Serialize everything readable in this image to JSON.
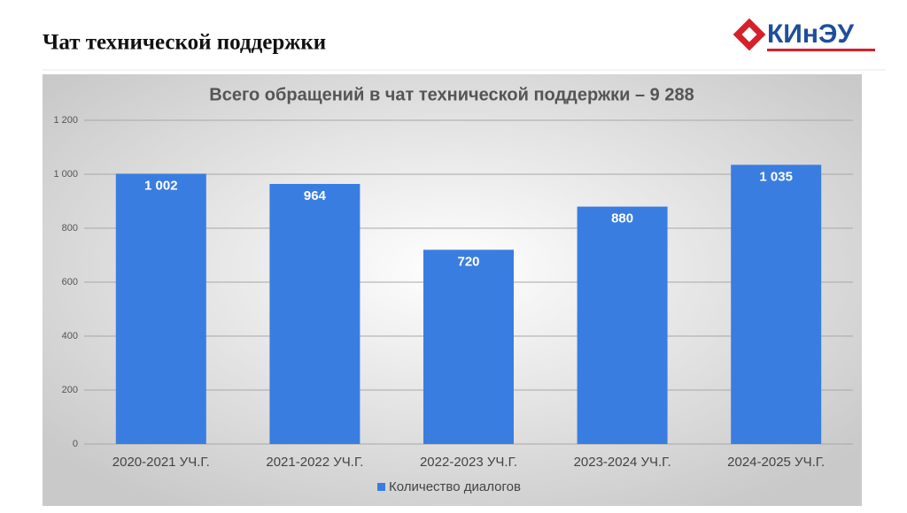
{
  "header": {
    "title": "Чат технической поддержки",
    "logo": "КИнЭУ"
  },
  "chart_data": {
    "type": "bar",
    "title": "Всего обращений в чат технической поддержки – 9 288",
    "categories": [
      "2020-2021 УЧ.Г.",
      "2021-2022 УЧ.Г.",
      "2022-2023 УЧ.Г.",
      "2023-2024 УЧ.Г.",
      "2024-2025 УЧ.Г."
    ],
    "series": [
      {
        "name": "Количество диалогов",
        "color": "#3a7de0",
        "values": [
          1002,
          964,
          720,
          880,
          1035
        ],
        "value_labels": [
          "1 002",
          "964",
          "720",
          "880",
          "1 035"
        ]
      }
    ],
    "ylim": [
      0,
      1200
    ],
    "yticks": [
      0,
      200,
      400,
      600,
      800,
      {
        "value": 1000,
        "label": "1 000"
      },
      {
        "value": 1200,
        "label": "1 200"
      }
    ],
    "grid": true,
    "legend": "bottom"
  }
}
